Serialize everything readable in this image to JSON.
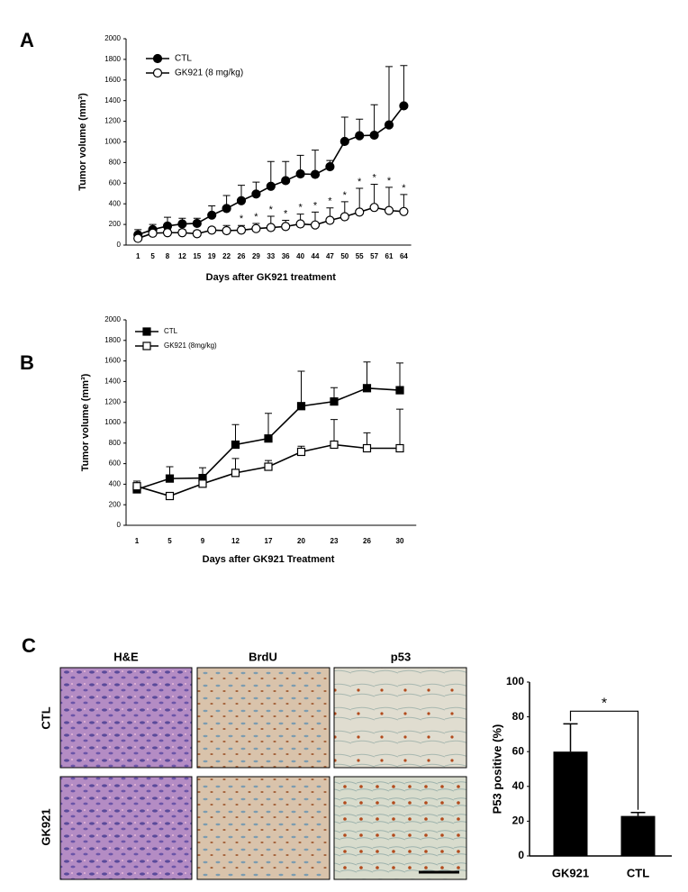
{
  "panels": [
    "A",
    "B",
    "C"
  ],
  "micrographs": {
    "columns": [
      "H&E",
      "BrdU",
      "p53"
    ],
    "rows": [
      "CTL",
      "GK921"
    ]
  },
  "chart_data": [
    {
      "type": "line",
      "y_label": "Tumor volume (mm³)",
      "x_label": "Days after GK921 treatment",
      "categories": [
        1,
        5,
        8,
        12,
        15,
        19,
        22,
        26,
        29,
        33,
        36,
        40,
        44,
        47,
        50,
        55,
        57,
        61,
        64
      ],
      "ylim": [
        0,
        2000
      ],
      "yticks": [
        0,
        200,
        400,
        600,
        800,
        1000,
        1200,
        1400,
        1600,
        1800,
        2000
      ],
      "grid": false,
      "marker": "circle",
      "legend": "upper left",
      "series": [
        {
          "name": "CTL",
          "color": "#000000",
          "filled": true,
          "values": [
            100,
            150,
            185,
            205,
            210,
            290,
            355,
            430,
            495,
            570,
            625,
            690,
            685,
            760,
            1005,
            1060,
            1065,
            1165,
            1350
          ],
          "errors": [
            50,
            50,
            85,
            55,
            50,
            90,
            125,
            150,
            115,
            240,
            185,
            180,
            235,
            60,
            235,
            160,
            295,
            565,
            390
          ]
        },
        {
          "name": "GK921 (8 mg/kg)",
          "color": "#000000",
          "filled": false,
          "values": [
            65,
            115,
            120,
            120,
            110,
            145,
            140,
            145,
            160,
            170,
            180,
            205,
            195,
            240,
            275,
            320,
            365,
            335,
            325
          ],
          "errors": [
            45,
            35,
            30,
            30,
            30,
            25,
            50,
            45,
            50,
            110,
            60,
            95,
            125,
            120,
            145,
            230,
            225,
            225,
            165
          ]
        }
      ],
      "significance": [
        null,
        null,
        null,
        null,
        null,
        null,
        null,
        "*",
        "*",
        "*",
        "*",
        "*",
        "*",
        "*",
        "*",
        "*",
        "*",
        "*",
        "*"
      ]
    },
    {
      "type": "line",
      "y_label": "Tumor volume (mm³)",
      "x_label": "Days after GK921 Treatment",
      "categories": [
        1,
        5,
        9,
        12,
        17,
        20,
        23,
        26,
        30
      ],
      "ylim": [
        0,
        2000
      ],
      "yticks": [
        0,
        200,
        400,
        600,
        800,
        1000,
        1200,
        1400,
        1600,
        1800,
        2000
      ],
      "grid": false,
      "marker": "square",
      "legend": "upper left",
      "series": [
        {
          "name": "CTL",
          "color": "#000000",
          "filled": true,
          "values": [
            350,
            455,
            460,
            785,
            845,
            1160,
            1205,
            1335,
            1315
          ],
          "errors": [
            50,
            115,
            100,
            195,
            245,
            340,
            135,
            255,
            265
          ]
        },
        {
          "name": "GK921 (8mg/kg)",
          "color": "#000000",
          "filled": false,
          "values": [
            380,
            285,
            405,
            510,
            570,
            715,
            785,
            750,
            750
          ],
          "errors": [
            50,
            15,
            15,
            140,
            60,
            55,
            245,
            150,
            380
          ]
        }
      ]
    },
    {
      "type": "bar",
      "y_label": "P53 positive (%)",
      "categories": [
        "GK921",
        "CTL"
      ],
      "values": [
        60,
        23
      ],
      "errors": [
        16,
        2
      ],
      "color": "#000000",
      "ylim": [
        0,
        100
      ],
      "yticks": [
        0,
        20,
        40,
        60,
        80,
        100
      ],
      "grid": false,
      "annotation": "*"
    }
  ]
}
